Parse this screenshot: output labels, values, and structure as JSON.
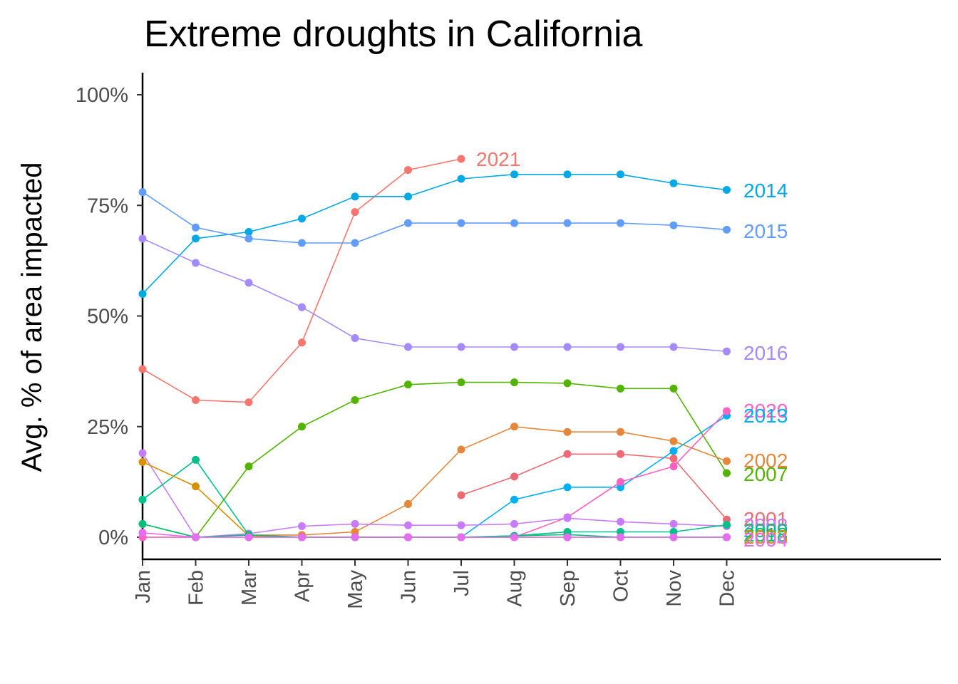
{
  "chart_data": {
    "type": "line",
    "title": "Extreme droughts in California",
    "xlabel": "",
    "ylabel": "Avg. % of area impacted",
    "categories": [
      "Jan",
      "Feb",
      "Mar",
      "Apr",
      "May",
      "Jun",
      "Jul",
      "Aug",
      "Sep",
      "Oct",
      "Nov",
      "Dec"
    ],
    "y_ticks": [
      "0%",
      "25%",
      "50%",
      "75%",
      "100%"
    ],
    "ylim": [
      0,
      1
    ],
    "grid": false,
    "legend": "direct labels at line ends",
    "series": [
      {
        "name": "2021",
        "color": "#f8766d",
        "values": [
          0.38,
          0.31,
          0.305,
          0.44,
          0.735,
          0.83,
          0.855,
          null,
          null,
          null,
          null,
          null
        ]
      },
      {
        "name": "2014",
        "color": "#00a9e5",
        "values": [
          0.55,
          0.675,
          0.69,
          0.72,
          0.77,
          0.77,
          0.81,
          0.82,
          0.82,
          0.82,
          0.8,
          0.785
        ]
      },
      {
        "name": "2015",
        "color": "#619cff",
        "values": [
          0.78,
          0.7,
          0.675,
          0.665,
          0.665,
          0.71,
          0.71,
          0.71,
          0.71,
          0.71,
          0.705,
          0.695
        ]
      },
      {
        "name": "2016",
        "color": "#a58aff",
        "values": [
          0.675,
          0.62,
          0.575,
          0.52,
          0.45,
          0.43,
          0.43,
          0.43,
          0.43,
          0.43,
          0.43,
          0.42
        ]
      },
      {
        "name": "2007",
        "color": "#53b400",
        "values": [
          0.03,
          0.0,
          0.16,
          0.25,
          0.31,
          0.345,
          0.35,
          0.35,
          0.348,
          0.336,
          0.336,
          0.145
        ]
      },
      {
        "name": "2002",
        "color": "#e6863a",
        "values": [
          0.0,
          0.0,
          0.005,
          0.005,
          0.012,
          0.075,
          0.198,
          0.25,
          0.238,
          0.238,
          0.217,
          0.172
        ]
      },
      {
        "name": "2001",
        "color": "#ee6a73",
        "values": [
          null,
          null,
          null,
          null,
          null,
          null,
          0.095,
          0.137,
          0.188,
          0.188,
          0.178,
          0.04
        ]
      },
      {
        "name": "2013",
        "color": "#00b0f6",
        "values": [
          null,
          null,
          null,
          null,
          null,
          null,
          0.0,
          0.085,
          0.113,
          0.113,
          0.195,
          0.275
        ]
      },
      {
        "name": "2020",
        "color": "#ff61c3",
        "values": [
          0.0,
          0.0,
          0.0,
          0.0,
          0.0,
          0.0,
          0.0,
          0.0,
          0.045,
          0.125,
          0.16,
          0.285
        ]
      },
      {
        "name": "2008",
        "color": "#c77cff",
        "values": [
          0.19,
          0.0,
          0.008,
          0.025,
          0.03,
          0.027,
          0.027,
          0.03,
          0.043,
          0.035,
          0.03,
          0.025
        ]
      },
      {
        "name": "2009",
        "color": "#00c08b",
        "values": [
          0.085,
          0.175,
          0.005,
          0.0,
          0.0,
          0.0,
          0.0,
          0.003,
          0.012,
          0.012,
          0.012,
          0.028
        ]
      },
      {
        "name": "2003",
        "color": "#d89000",
        "values": [
          0.17,
          0.115,
          0.003,
          0.0,
          0.0,
          0.0,
          0.0,
          0.0,
          0.0,
          0.0,
          0.0,
          0.0
        ]
      },
      {
        "name": "2018",
        "color": "#00bf7d",
        "values": [
          0.03,
          0.0,
          0.005,
          0.0,
          0.0,
          0.0,
          0.0,
          0.003,
          0.006,
          0.0,
          0.0,
          0.0
        ]
      },
      {
        "name": "2004",
        "color": "#e76bf3",
        "values": [
          0.01,
          0.0,
          0.0,
          0.0,
          0.0,
          0.0,
          0.0,
          0.0,
          0.0,
          0.0,
          0.0,
          0.0
        ]
      }
    ],
    "end_labels": [
      {
        "text": "2021",
        "color": "#f8766d"
      },
      {
        "text": "2014",
        "color": "#00a9e5"
      },
      {
        "text": "2015",
        "color": "#619cff"
      },
      {
        "text": "2016",
        "color": "#a58aff"
      },
      {
        "text": "2020",
        "color": "#ff61c3"
      },
      {
        "text": "2013",
        "color": "#00b0f6"
      },
      {
        "text": "2002",
        "color": "#e6863a"
      },
      {
        "text": "2007",
        "color": "#53b400"
      },
      {
        "text": "2001",
        "color": "#ee6a73"
      },
      {
        "text": "2008",
        "color": "#c77cff"
      },
      {
        "text": "2009",
        "color": "#00c08b"
      },
      {
        "text": "2018",
        "color": "#00bf7d"
      },
      {
        "text": "2003",
        "color": "#d89000"
      },
      {
        "text": "2004",
        "color": "#e76bf3"
      }
    ]
  }
}
